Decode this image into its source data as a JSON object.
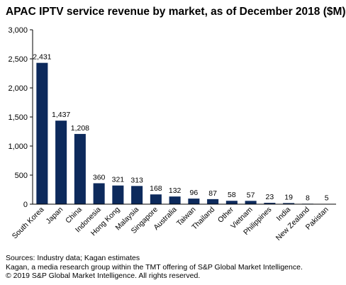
{
  "chart_data": {
    "type": "bar",
    "title": "APAC IPTV service revenue by market, as of December 2018 ($M)",
    "xlabel": "",
    "ylabel": "",
    "ylim": [
      0,
      3000
    ],
    "yticks": [
      0,
      500,
      1000,
      1500,
      2000,
      2500,
      3000
    ],
    "ytick_labels": [
      "0",
      "500",
      "1,000",
      "1,500",
      "2,000",
      "2,500",
      "3,000"
    ],
    "grid": false,
    "bar_color": "#0d2a5c",
    "categories": [
      "South Korea",
      "Japan",
      "China",
      "Indonesia",
      "Hong Kong",
      "Malaysia",
      "Singapore",
      "Australia",
      "Taiwan",
      "Thailand",
      "Other",
      "Vietnam",
      "Philippines",
      "India",
      "New Zealand",
      "Pakistan"
    ],
    "values": [
      2431,
      1437,
      1208,
      360,
      321,
      313,
      168,
      132,
      96,
      87,
      58,
      57,
      23,
      19,
      8,
      5
    ],
    "value_labels": [
      "2,431",
      "1,437",
      "1,208",
      "360",
      "321",
      "313",
      "168",
      "132",
      "96",
      "87",
      "58",
      "57",
      "23",
      "19",
      "8",
      "5"
    ]
  },
  "footer": {
    "line1": "Sources: Industry data; Kagan estimates",
    "line2": "Kagan, a media research group within the TMT offering of S&P Global Market Intelligence.",
    "line3": "© 2019 S&P Global Market Intelligence. All rights reserved."
  }
}
